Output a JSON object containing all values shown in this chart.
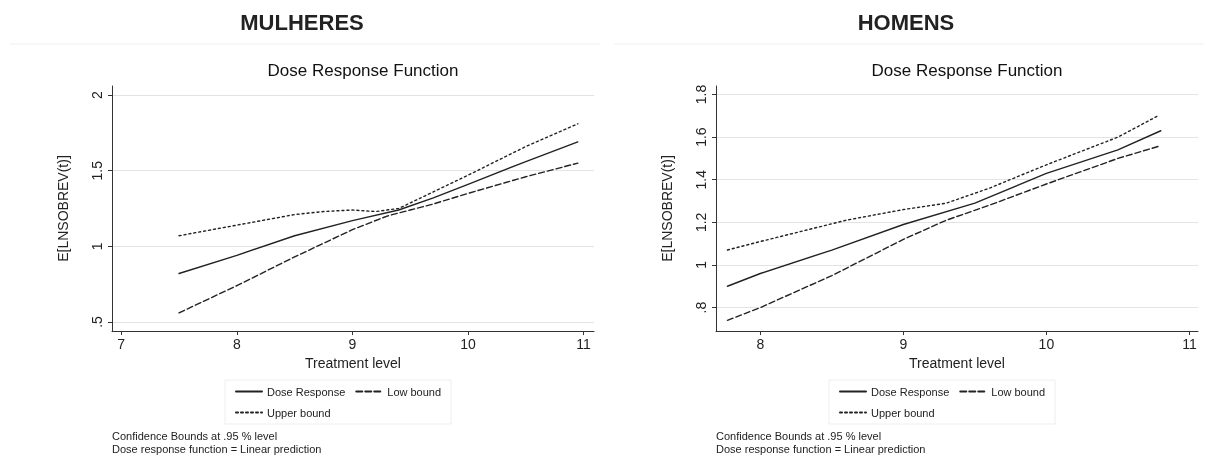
{
  "chart_data": [
    {
      "type": "line",
      "title": "MULHERES",
      "subtitle": "Dose Response Function",
      "xlabel": "Treatment level",
      "ylabel": "E[LNSOBREV(t)]",
      "annotations": [
        "Confidence Bounds at .95 % level",
        "Dose response function = Linear prediction"
      ],
      "xlim": [
        6.92,
        11.09
      ],
      "ylim": [
        0.44,
        2.06
      ],
      "xticks": [
        7,
        8,
        9,
        10,
        11
      ],
      "yticks": [
        {
          "value": 0.5,
          "label": ".5"
        },
        1,
        1.5,
        2
      ],
      "grid": "y",
      "legend": "bottom",
      "marker": "none",
      "series": [
        {
          "name": "Dose Response",
          "color": "#222222",
          "line_style": "solid",
          "x": [
            7.5,
            8,
            8.5,
            9,
            9.4,
            9.7,
            10,
            10.5,
            10.95
          ],
          "values": [
            0.82,
            0.94,
            1.07,
            1.17,
            1.24,
            1.32,
            1.41,
            1.56,
            1.69
          ]
        },
        {
          "name": "Low bound",
          "color": "#222222",
          "line_style": "dashed",
          "x": [
            7.5,
            8,
            8.5,
            9,
            9.3,
            9.5,
            9.7,
            10,
            10.5,
            10.95
          ],
          "values": [
            0.56,
            0.74,
            0.93,
            1.11,
            1.2,
            1.24,
            1.28,
            1.35,
            1.46,
            1.55
          ]
        },
        {
          "name": "Upper bound",
          "color": "#222222",
          "line_style": "dotted",
          "x": [
            7.5,
            8,
            8.5,
            8.75,
            9,
            9.2,
            9.4,
            9.7,
            10,
            10.5,
            10.95
          ],
          "values": [
            1.07,
            1.14,
            1.21,
            1.23,
            1.24,
            1.23,
            1.25,
            1.36,
            1.47,
            1.66,
            1.81
          ]
        }
      ]
    },
    {
      "type": "line",
      "title": "HOMENS",
      "subtitle": "Dose Response Function",
      "xlabel": "Treatment level",
      "ylabel": "E[LNSOBREV(t)]",
      "annotations": [
        "Confidence Bounds at .95 % level",
        "Dose response function = Linear prediction"
      ],
      "xlim": [
        7.69,
        11.06
      ],
      "ylim": [
        0.69,
        1.84
      ],
      "xticks": [
        8,
        9,
        10,
        11
      ],
      "yticks": [
        {
          "value": 0.8,
          "label": ".8"
        },
        1,
        1.2,
        1.4,
        1.6,
        1.8
      ],
      "grid": "y",
      "legend": "bottom",
      "marker": "none",
      "series": [
        {
          "name": "Dose Response",
          "color": "#222222",
          "line_style": "solid",
          "x": [
            7.77,
            8,
            8.5,
            9,
            9.5,
            10,
            10.5,
            10.8
          ],
          "values": [
            0.9,
            0.96,
            1.07,
            1.19,
            1.29,
            1.43,
            1.54,
            1.63
          ]
        },
        {
          "name": "Low bound",
          "color": "#222222",
          "line_style": "dashed",
          "x": [
            7.77,
            8,
            8.5,
            9,
            9.3,
            9.6,
            10,
            10.5,
            10.8
          ],
          "values": [
            0.74,
            0.8,
            0.95,
            1.12,
            1.21,
            1.28,
            1.38,
            1.5,
            1.56
          ]
        },
        {
          "name": "Upper bound",
          "color": "#222222",
          "line_style": "dotted",
          "x": [
            7.77,
            8,
            8.6,
            9,
            9.3,
            9.6,
            10,
            10.5,
            10.78
          ],
          "values": [
            1.07,
            1.11,
            1.21,
            1.26,
            1.29,
            1.36,
            1.47,
            1.6,
            1.7
          ]
        }
      ]
    }
  ]
}
